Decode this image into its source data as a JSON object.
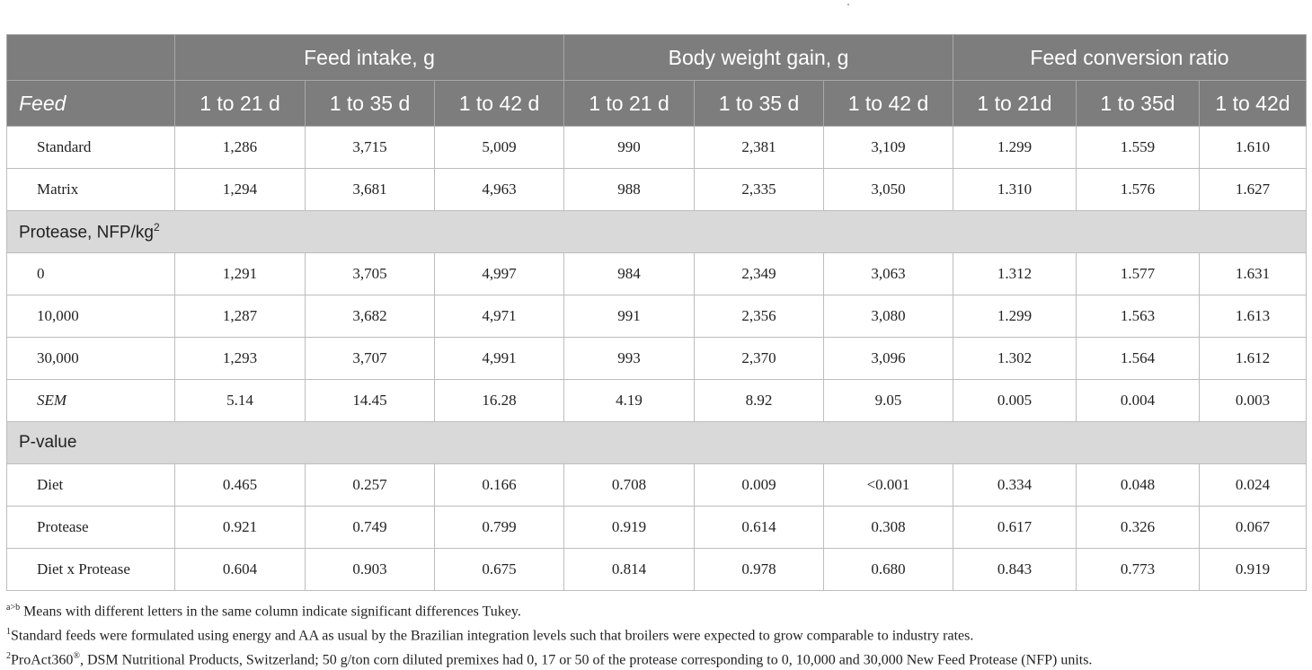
{
  "table": {
    "group_headers": [
      "Feed intake, g",
      "Body weight gain, g",
      "Feed conversion ratio"
    ],
    "first_column_header": "Feed",
    "column_headers": [
      "1 to 21 d",
      "1 to 35 d",
      "1 to 42 d",
      "1 to 21 d",
      "1 to 35 d",
      "1 to 42 d",
      "1 to 21d",
      "1 to 35d",
      "1 to 42d"
    ],
    "feed_rows": [
      {
        "label": "Standard",
        "values": [
          "1,286",
          "3,715",
          "5,009",
          "990",
          "2,381",
          "3,109",
          "1.299",
          "1.559",
          "1.610"
        ]
      },
      {
        "label": "Matrix",
        "values": [
          "1,294",
          "3,681",
          "4,963",
          "988",
          "2,335",
          "3,050",
          "1.310",
          "1.576",
          "1.627"
        ]
      }
    ],
    "protease_section": {
      "label": "Protease, NFP/kg",
      "sup": "2"
    },
    "protease_rows": [
      {
        "label": "0",
        "values": [
          "1,291",
          "3,705",
          "4,997",
          "984",
          "2,349",
          "3,063",
          "1.312",
          "1.577",
          "1.631"
        ]
      },
      {
        "label": "10,000",
        "values": [
          "1,287",
          "3,682",
          "4,971",
          "991",
          "2,356",
          "3,080",
          "1.299",
          "1.563",
          "1.613"
        ]
      },
      {
        "label": "30,000",
        "values": [
          "1,293",
          "3,707",
          "4,991",
          "993",
          "2,370",
          "3,096",
          "1.302",
          "1.564",
          "1.612"
        ]
      },
      {
        "label": "SEM",
        "italic": true,
        "values": [
          "5.14",
          "14.45",
          "16.28",
          "4.19",
          "8.92",
          "9.05",
          "0.005",
          "0.004",
          "0.003"
        ]
      }
    ],
    "pvalue_section": {
      "label": "P-value"
    },
    "pvalue_rows": [
      {
        "label": "Diet",
        "values": [
          "0.465",
          "0.257",
          "0.166",
          "0.708",
          "0.009",
          "<0.001",
          "0.334",
          "0.048",
          "0.024"
        ]
      },
      {
        "label": "Protease",
        "values": [
          "0.921",
          "0.749",
          "0.799",
          "0.919",
          "0.614",
          "0.308",
          "0.617",
          "0.326",
          "0.067"
        ]
      },
      {
        "label": "Diet x Protease",
        "values": [
          "0.604",
          "0.903",
          "0.675",
          "0.814",
          "0.978",
          "0.680",
          "0.843",
          "0.773",
          "0.919"
        ]
      }
    ]
  },
  "footnotes": [
    {
      "sup": "a>b",
      "text": " Means with different letters in the same column indicate significant differences Tukey."
    },
    {
      "sup": "1",
      "text": "Standard feeds were formulated using energy and AA as usual by the Brazilian integration levels such that broilers were expected to grow comparable to industry rates."
    },
    {
      "sup": "2",
      "text": "ProAct360",
      "sup2": "®",
      "text2": ", DSM Nutritional Products, Switzerland; 50 g/ton corn diluted premixes had 0, 17 or 50 of the protease corresponding to 0, 10,000 and 30,000 New Feed Protease (NFP) units."
    }
  ]
}
